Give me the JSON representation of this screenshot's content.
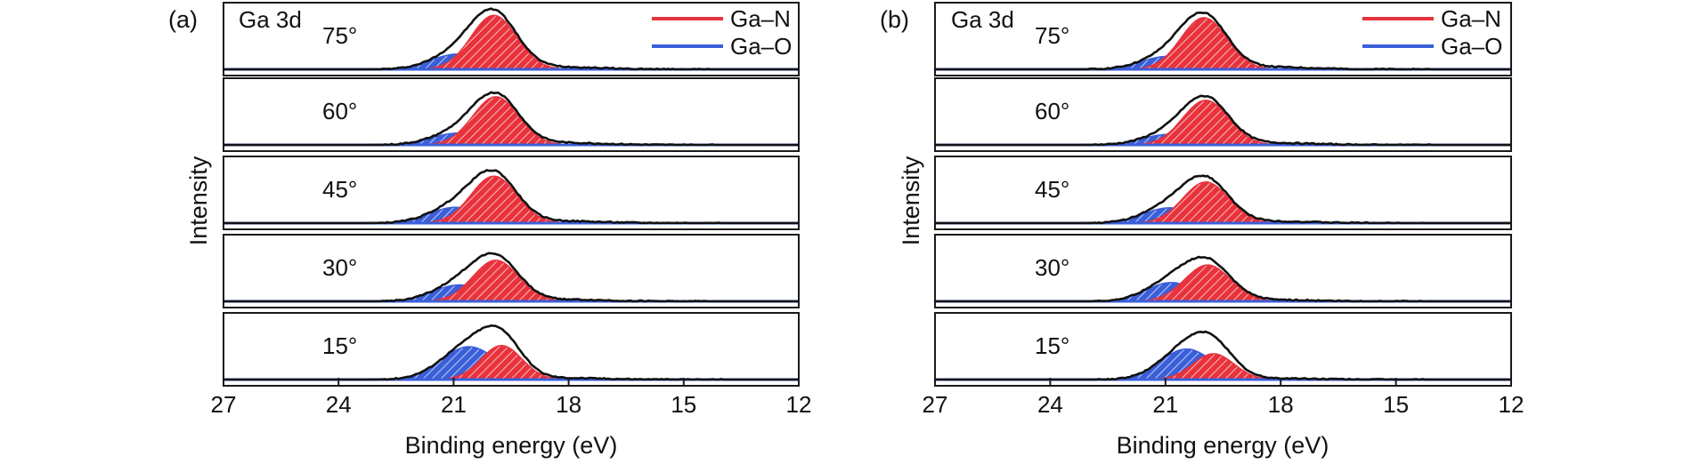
{
  "figure": {
    "panels": [
      {
        "panel_label": "(a)",
        "element_label": "Ga 3d",
        "xlabel": "Binding energy (eV)",
        "ylabel": "Intensity",
        "legend": [
          {
            "name": "Ga–N",
            "color": "#e8323c"
          },
          {
            "name": "Ga–O",
            "color": "#3a5fd9"
          }
        ]
      },
      {
        "panel_label": "(b)",
        "element_label": "Ga 3d",
        "xlabel": "Binding energy (eV)",
        "ylabel": "Intensity",
        "legend": [
          {
            "name": "Ga–N",
            "color": "#e8323c"
          },
          {
            "name": "Ga–O",
            "color": "#3a5fd9"
          }
        ]
      }
    ]
  },
  "chart_data": [
    {
      "type": "area",
      "panel": "(a)",
      "xlabel": "Binding energy (eV)",
      "ylabel": "Intensity",
      "xlim": [
        27,
        12
      ],
      "x_reversed": true,
      "x_ticks": [
        27,
        24,
        21,
        18,
        15,
        12
      ],
      "x_tick_labels": [
        "27",
        "24",
        "21",
        "18",
        "15",
        "12"
      ],
      "stack_labels": [
        "75°",
        "60°",
        "45°",
        "30°",
        "15°"
      ],
      "colors": {
        "Ga–N": "#e8323c",
        "Ga–O": "#3a5fd9",
        "envelope": "#111111",
        "baseline": "#3a5fd9"
      },
      "stacks": [
        {
          "angle": "75°",
          "ga_n": {
            "center": 19.95,
            "height": 0.92,
            "fwhm": 1.4
          },
          "ga_o": {
            "center": 20.9,
            "height": 0.26,
            "fwhm": 1.6
          }
        },
        {
          "angle": "60°",
          "ga_n": {
            "center": 19.9,
            "height": 0.82,
            "fwhm": 1.4
          },
          "ga_o": {
            "center": 20.9,
            "height": 0.2,
            "fwhm": 1.6
          }
        },
        {
          "angle": "45°",
          "ga_n": {
            "center": 19.95,
            "height": 0.8,
            "fwhm": 1.4
          },
          "ga_o": {
            "center": 20.95,
            "height": 0.27,
            "fwhm": 1.6
          }
        },
        {
          "angle": "30°",
          "ga_n": {
            "center": 19.9,
            "height": 0.7,
            "fwhm": 1.4
          },
          "ga_o": {
            "center": 20.85,
            "height": 0.28,
            "fwhm": 1.6
          }
        },
        {
          "angle": "15°",
          "ga_n": {
            "center": 19.75,
            "height": 0.58,
            "fwhm": 1.25
          },
          "ga_o": {
            "center": 20.6,
            "height": 0.56,
            "fwhm": 1.7
          }
        }
      ]
    },
    {
      "type": "area",
      "panel": "(b)",
      "xlabel": "Binding energy (eV)",
      "ylabel": "Intensity",
      "xlim": [
        27,
        12
      ],
      "x_reversed": true,
      "x_ticks": [
        27,
        24,
        21,
        18,
        15,
        12
      ],
      "x_tick_labels": [
        "27",
        "24",
        "21",
        "18",
        "15",
        "12"
      ],
      "stack_labels": [
        "75°",
        "60°",
        "45°",
        "30°",
        "15°"
      ],
      "colors": {
        "Ga–N": "#e8323c",
        "Ga–O": "#3a5fd9",
        "envelope": "#111111",
        "baseline": "#3a5fd9"
      },
      "stacks": [
        {
          "angle": "75°",
          "ga_n": {
            "center": 20.0,
            "height": 0.88,
            "fwhm": 1.4
          },
          "ga_o": {
            "center": 20.95,
            "height": 0.22,
            "fwhm": 1.6
          }
        },
        {
          "angle": "60°",
          "ga_n": {
            "center": 19.95,
            "height": 0.76,
            "fwhm": 1.4
          },
          "ga_o": {
            "center": 20.9,
            "height": 0.18,
            "fwhm": 1.6
          }
        },
        {
          "angle": "45°",
          "ga_n": {
            "center": 19.95,
            "height": 0.7,
            "fwhm": 1.4
          },
          "ga_o": {
            "center": 20.9,
            "height": 0.26,
            "fwhm": 1.6
          }
        },
        {
          "angle": "30°",
          "ga_n": {
            "center": 19.9,
            "height": 0.62,
            "fwhm": 1.4
          },
          "ga_o": {
            "center": 20.85,
            "height": 0.32,
            "fwhm": 1.55
          }
        },
        {
          "angle": "15°",
          "ga_n": {
            "center": 19.75,
            "height": 0.44,
            "fwhm": 1.25
          },
          "ga_o": {
            "center": 20.45,
            "height": 0.52,
            "fwhm": 1.6
          }
        }
      ]
    }
  ]
}
